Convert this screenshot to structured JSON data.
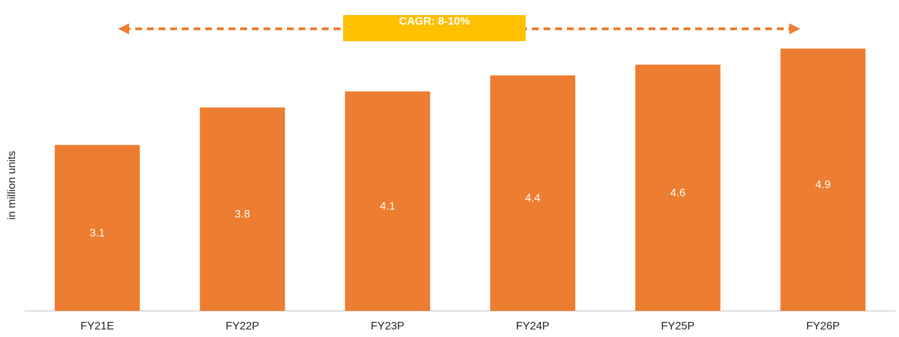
{
  "chart_data": {
    "type": "bar",
    "y_label": "in million units",
    "annotation": "CAGR: 8-10%",
    "categories": [
      "FY21E",
      "FY22P",
      "FY23P",
      "FY24P",
      "FY25P",
      "FY26P"
    ],
    "values": [
      3.1,
      3.8,
      4.1,
      4.4,
      4.6,
      4.9
    ],
    "color": "#ED7D31"
  }
}
